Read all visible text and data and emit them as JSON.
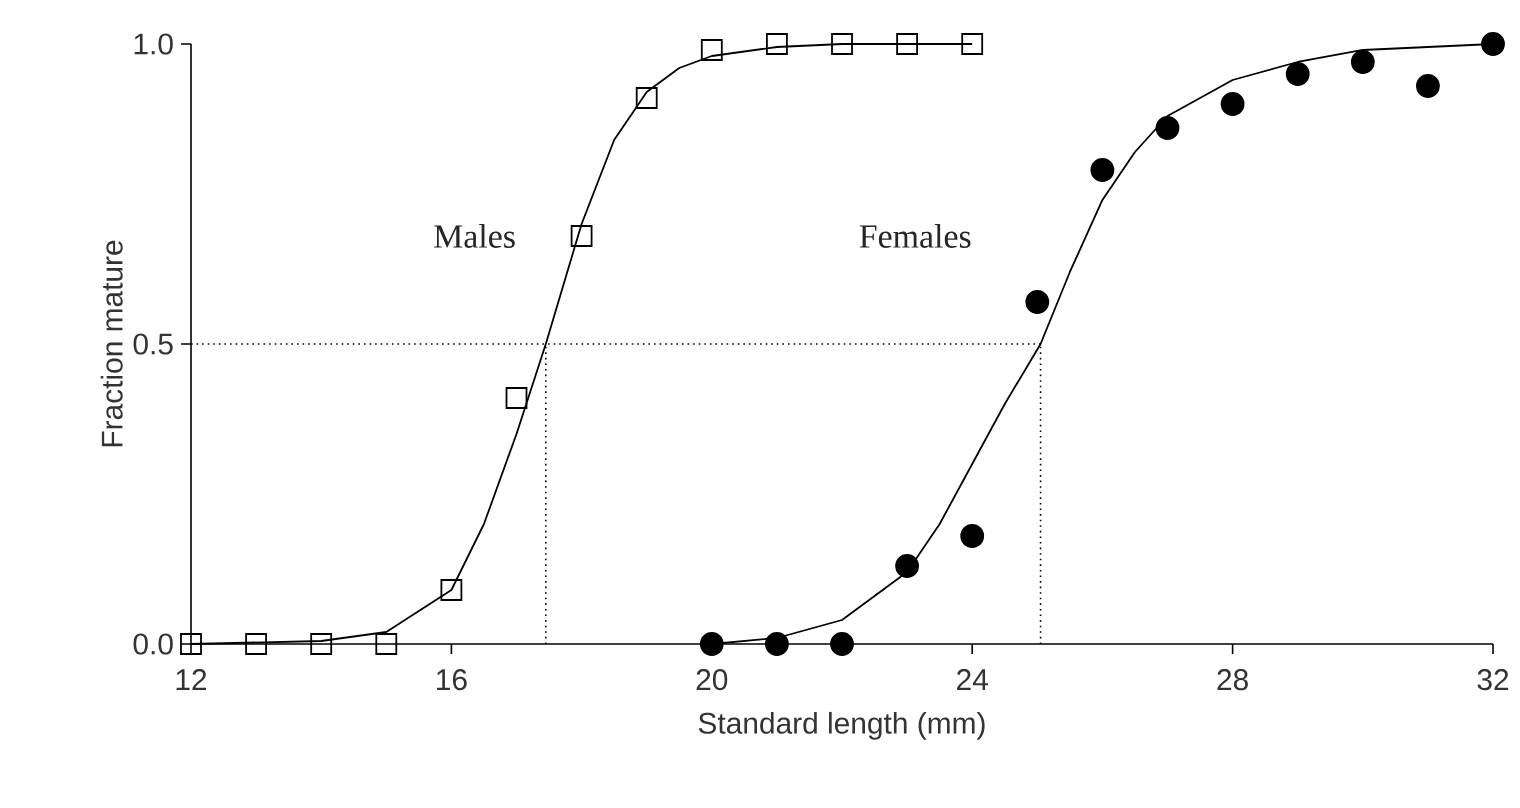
{
  "chart_data": {
    "type": "scatter",
    "xlabel": "Standard length (mm)",
    "ylabel": "Fraction mature",
    "xlim": [
      12,
      32
    ],
    "ylim": [
      0,
      1
    ],
    "xticks": [
      12,
      16,
      20,
      24,
      28,
      32
    ],
    "yticks": [
      {
        "value": 0,
        "label": "0.0"
      },
      {
        "value": 0.5,
        "label": "0.5"
      },
      {
        "value": 1,
        "label": "1.0"
      }
    ],
    "series": [
      {
        "name": "Males",
        "marker": "square",
        "color": "#000000",
        "x": [
          12,
          13,
          14,
          15,
          16,
          17,
          18,
          19,
          20,
          21,
          22,
          23,
          24
        ],
        "values": [
          0,
          0,
          0,
          0,
          0.09,
          0.41,
          0.68,
          0.91,
          0.99,
          1.0,
          1.0,
          1.0,
          1.0
        ]
      },
      {
        "type": "line",
        "marker": "none",
        "line_style": "solid",
        "color": "#000000",
        "x": [
          12,
          14,
          15,
          16,
          16.5,
          17,
          17.45,
          18,
          18.5,
          19,
          19.5,
          20,
          21,
          22,
          24
        ],
        "values": [
          0,
          0.005,
          0.02,
          0.09,
          0.2,
          0.35,
          0.5,
          0.7,
          0.84,
          0.92,
          0.96,
          0.98,
          0.995,
          1.0,
          1.0
        ]
      },
      {
        "name": "Females",
        "marker": "circle",
        "color": "#000000",
        "x": [
          20,
          21,
          22,
          23,
          24,
          25,
          26,
          27,
          28,
          29,
          30,
          31,
          32
        ],
        "values": [
          0,
          0,
          0,
          0.13,
          0.18,
          0.57,
          0.79,
          0.86,
          0.9,
          0.95,
          0.97,
          0.93,
          1.0
        ]
      },
      {
        "type": "line",
        "marker": "none",
        "line_style": "solid",
        "color": "#000000",
        "x": [
          20,
          21,
          22,
          23,
          23.5,
          24,
          24.5,
          25.05,
          25.5,
          26,
          26.5,
          27,
          28,
          29,
          30,
          32
        ],
        "values": [
          0,
          0.01,
          0.04,
          0.12,
          0.2,
          0.3,
          0.4,
          0.5,
          0.62,
          0.74,
          0.82,
          0.88,
          0.94,
          0.97,
          0.99,
          1.0
        ]
      }
    ],
    "ref_lines": [
      {
        "axis": "y",
        "value": 0.5,
        "line_style": "dotted",
        "color": "#000000"
      },
      {
        "axis": "x",
        "value": 17.45,
        "line_style": "dotted",
        "color": "#000000"
      },
      {
        "axis": "x",
        "value": 25.05,
        "line_style": "dotted",
        "color": "#000000"
      }
    ]
  }
}
